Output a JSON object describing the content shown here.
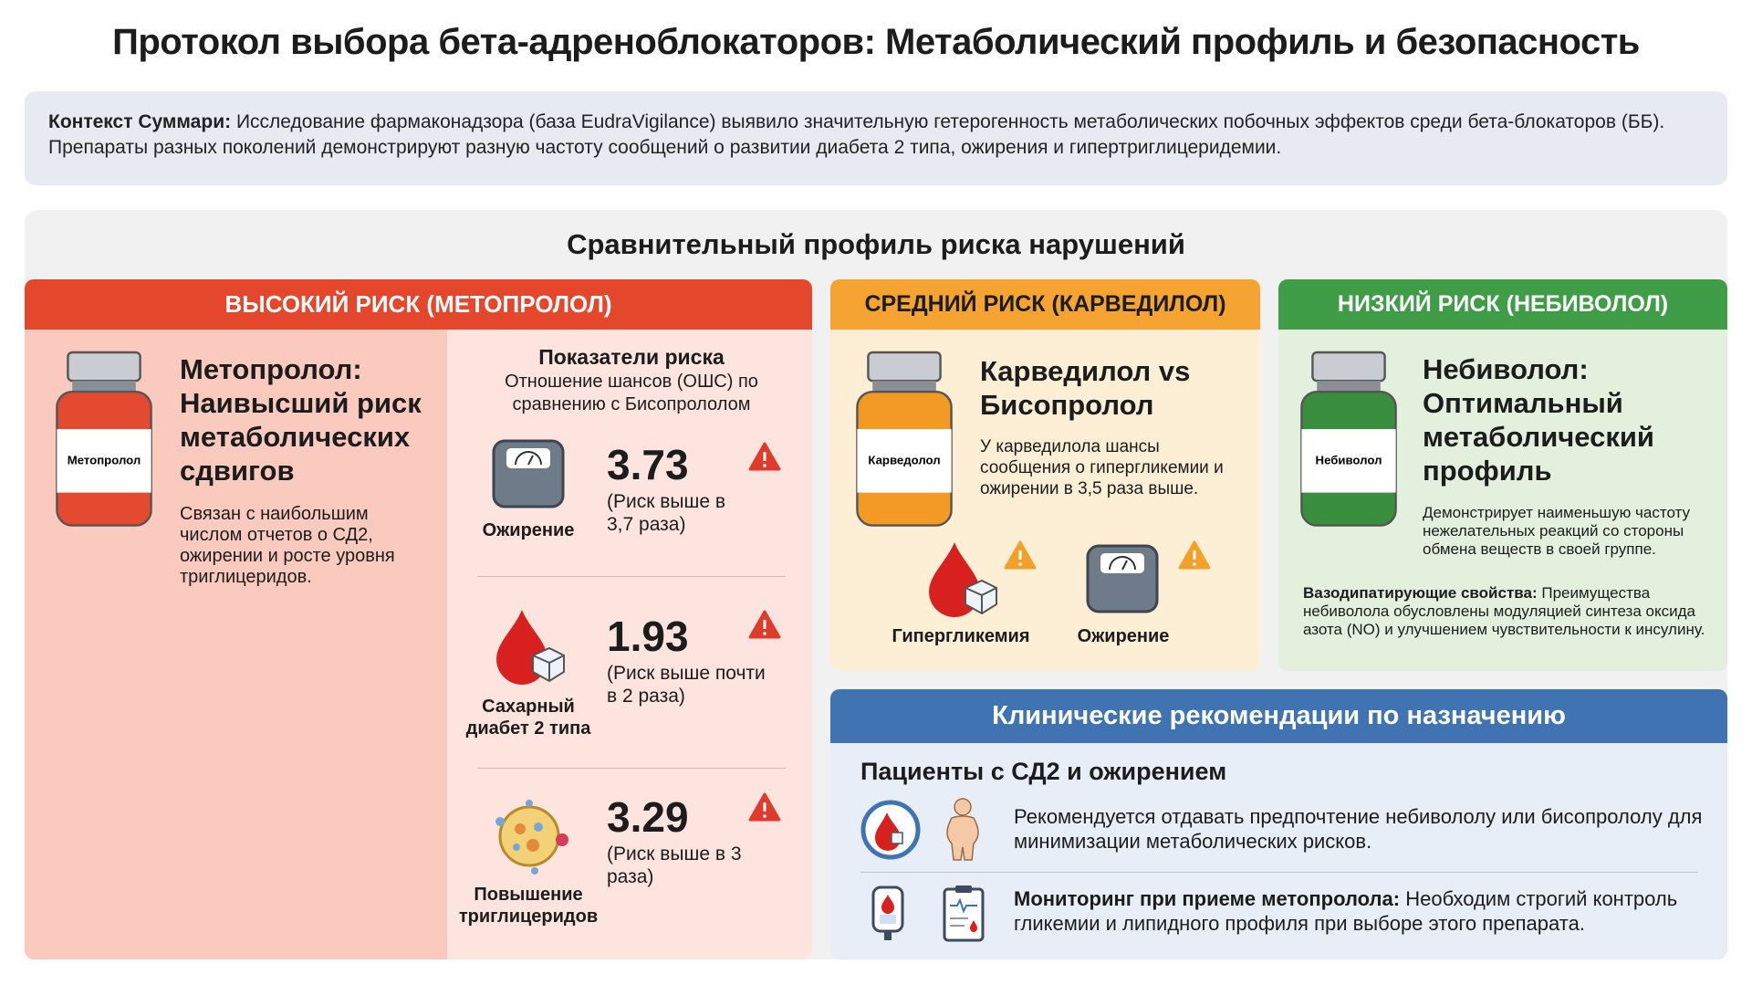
{
  "title": "Протокол выбора бета-адреноблокаторов: Метаболический профиль и безопасность",
  "context": {
    "label": "Контекст Суммари:",
    "text": "Исследование фармаконадзора (база EudraVigilance) выявило значительную гетерогенность метаболических побочных эффектов среди бета-блокаторов (ББ). Препараты разных поколений демонстрируют разную частоту сообщений о развитии диабета 2 типа, ожирения и гипертриглицеридемии."
  },
  "comparison": {
    "title": "Сравнительный профиль риска нарушений",
    "high": {
      "header": "ВЫСОКИЙ РИСК (МЕТОПРОЛОЛ)",
      "drug_label": "Метопролол",
      "heading": "Метопролол: Наивысший риск метаболических сдвигов",
      "description": "Связан с наибольшим числом отчетов о СД2, ожирении и росте уровня триглицеридов.",
      "indicators": {
        "title": "Показатели риска",
        "subtitle": "Отношение шансов (ОШС) по сравнению с Бисопрололом",
        "items": [
          {
            "name": "Ожирение",
            "value": 3.73,
            "note": "(Риск выше в 3,7 раза)"
          },
          {
            "name": "Сахарный диабет 2 типа",
            "value": 1.93,
            "note": "(Риск выше почти в 2 раза)"
          },
          {
            "name": "Повышение триглицеридов",
            "value": 3.29,
            "note": "(Риск выше в 3 раза)"
          }
        ]
      }
    },
    "medium": {
      "header": "СРЕДНИЙ РИСК (КАРВЕДИЛОЛ)",
      "drug_label": "Карведолол",
      "heading": "Карведилол vs Бисопролол",
      "description": "У карведилола шансы сообщения о гипергликемии и ожирении в 3,5 раза выше.",
      "effects": [
        "Гипергликемия",
        "Ожирение"
      ]
    },
    "low": {
      "header": "НИЗКИЙ РИСК (НЕБИВОЛОЛ)",
      "drug_label": "Небиволол",
      "heading": "Небиволол: Оптимальный метаболический профиль",
      "description": "Демонстрирует наименьшую частоту нежелательных реакций со стороны обмена веществ в своей группе.",
      "property_label": "Вазодипатирующие свойства:",
      "property_text": "Преимущества небиволола обусловлены модуляцией синтеза оксида азота (NO) и улучшением чувствительности к инсулину."
    }
  },
  "recommendations": {
    "title": "Клинические рекомендации по назначению",
    "group": "Пациенты с СД2 и ожирением",
    "items": [
      {
        "text": "Рекомендуется отдавать предпочтение небивололу или бисопрололу для минимизации метаболических рисков."
      },
      {
        "label": "Мониторинг при приеме метопролола:",
        "text": "Необходим строгий контроль гликемии и липидного профиля при выборе этого препарата."
      }
    ]
  }
}
